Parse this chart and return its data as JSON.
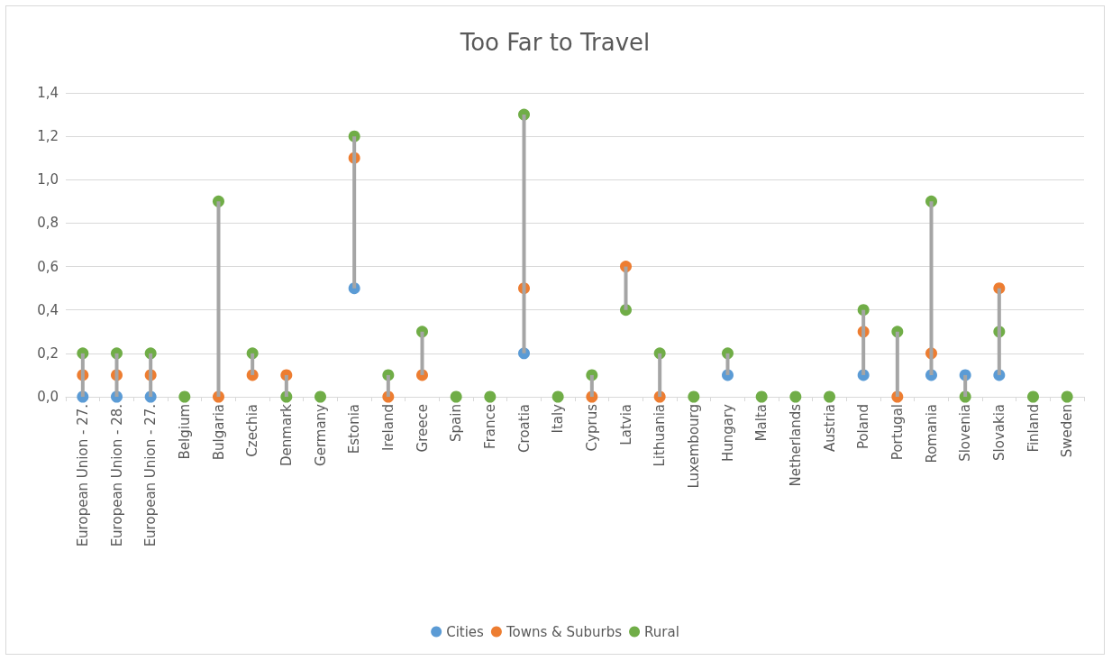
{
  "chart_data": {
    "type": "scatter",
    "title": "Too Far to Travel",
    "categories": [
      "European Union - 27.",
      "European Union - 28.",
      "European Union - 27.",
      "Belgium",
      "Bulgaria",
      "Czechia",
      "Denmark",
      "Germany",
      "Estonia",
      "Ireland",
      "Greece",
      "Spain",
      "France",
      "Croatia",
      "Italy",
      "Cyprus",
      "Latvia",
      "Lithuania",
      "Luxembourg",
      "Hungary",
      "Malta",
      "Netherlands",
      "Austria",
      "Poland",
      "Portugal",
      "Romania",
      "Slovenia",
      "Slovakia",
      "Finland",
      "Sweden"
    ],
    "series": [
      {
        "type": "bar",
        "color": "#a5a5a5",
        "base": [
          0,
          0,
          0,
          null,
          0,
          0.1,
          0,
          null,
          0.5,
          0,
          0.1,
          null,
          null,
          0.2,
          null,
          0,
          0.4,
          0,
          null,
          0.1,
          null,
          null,
          null,
          0.1,
          0,
          0.1,
          0,
          0.1,
          null,
          null
        ],
        "values": [
          0.2,
          0.2,
          0.2,
          null,
          0.9,
          0.1,
          0.1,
          null,
          0.7,
          0.1,
          0.2,
          null,
          null,
          1.1,
          null,
          0.1,
          0.2,
          0.2,
          null,
          0.1,
          null,
          null,
          null,
          0.3,
          0.3,
          0.8,
          0.1,
          0.4,
          null,
          null
        ]
      },
      {
        "name": "Cities",
        "color": "#5b9bd5",
        "values": [
          0,
          0,
          0,
          null,
          null,
          null,
          null,
          null,
          0.5,
          null,
          null,
          null,
          null,
          0.2,
          null,
          null,
          null,
          null,
          null,
          0.1,
          null,
          null,
          null,
          0.1,
          null,
          0.1,
          0.1,
          0.1,
          null,
          null
        ]
      },
      {
        "name": "Towns & Suburbs",
        "color": "#ed7d31",
        "values": [
          0.1,
          0.1,
          0.1,
          null,
          0,
          0.1,
          0.1,
          null,
          1.1,
          0,
          0.1,
          null,
          null,
          0.5,
          null,
          0,
          0.6,
          0,
          null,
          null,
          null,
          null,
          null,
          0.3,
          0,
          0.2,
          null,
          0.5,
          null,
          null
        ]
      },
      {
        "name": "Rural",
        "color": "#70ad47",
        "values": [
          0.2,
          0.2,
          0.2,
          0,
          0.9,
          0.2,
          0,
          0,
          1.2,
          0.1,
          0.3,
          0,
          0,
          1.3,
          0,
          0.1,
          0.4,
          0.2,
          0,
          0.2,
          0,
          0,
          0,
          0.4,
          0.3,
          0.9,
          0,
          0.3,
          0,
          0
        ]
      }
    ],
    "ylim": [
      0,
      1.4
    ],
    "yticks": [
      {
        "value": 0,
        "label": "0,0"
      },
      {
        "value": 0.2,
        "label": "0,2"
      },
      {
        "value": 0.4,
        "label": "0,4"
      },
      {
        "value": 0.6,
        "label": "0,6"
      },
      {
        "value": 0.8,
        "label": "0,8"
      },
      {
        "value": 1,
        "label": "1,0"
      },
      {
        "value": 1.2,
        "label": "1,2"
      },
      {
        "value": 1.4,
        "label": "1,4"
      }
    ],
    "grid": "y",
    "legend": "bottom",
    "marker": "circle"
  }
}
